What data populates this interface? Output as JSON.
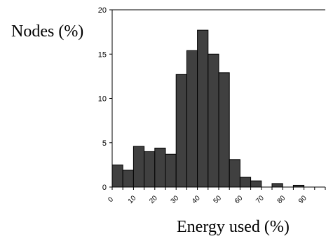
{
  "chart_data": {
    "type": "bar",
    "xlabel": "Energy used (%)",
    "ylabel": "Nodes (%)",
    "ylim": [
      0,
      20
    ],
    "yticks": [
      "0",
      "5",
      "10",
      "15",
      "20"
    ],
    "xticks": [
      "0",
      "10",
      "20",
      "30",
      "40",
      "50",
      "60",
      "70",
      "80",
      "90"
    ],
    "bin_width": 5,
    "bins": [
      0,
      5,
      10,
      15,
      20,
      25,
      30,
      35,
      40,
      45,
      50,
      55,
      60,
      65,
      70,
      75,
      80,
      85,
      90,
      95
    ],
    "values": [
      2.5,
      1.9,
      4.6,
      4.0,
      4.4,
      3.7,
      12.7,
      15.4,
      17.7,
      15.0,
      12.9,
      3.1,
      1.1,
      0.7,
      0.0,
      0.4,
      0.0,
      0.2,
      0.0,
      0.0
    ],
    "grid": false,
    "bar_color": "#404040"
  }
}
